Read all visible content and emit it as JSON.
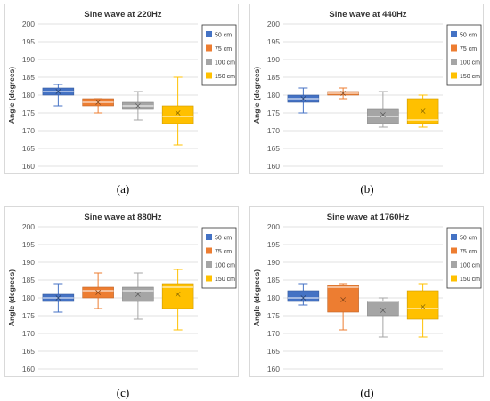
{
  "chart_data": [
    {
      "type": "box",
      "title": "Sine wave at 220Hz",
      "ylabel": "Angle (degrees)",
      "ylim": [
        160,
        200
      ],
      "yticks": [
        160,
        165,
        170,
        175,
        180,
        185,
        190,
        195,
        200
      ],
      "grid": true,
      "legend": "top-right",
      "series": [
        {
          "name": "50 cm",
          "color": "#4472C4",
          "min": 177,
          "q1": 180,
          "median": 181,
          "q3": 182,
          "max": 183,
          "mean": 181
        },
        {
          "name": "75 cm",
          "color": "#ED7D31",
          "min": 175,
          "q1": 177,
          "median": 178,
          "q3": 179,
          "max": 179,
          "mean": 178
        },
        {
          "name": "100 cm",
          "color": "#A5A5A5",
          "min": 173,
          "q1": 176,
          "median": 177,
          "q3": 178,
          "max": 181,
          "mean": 177
        },
        {
          "name": "150 cm",
          "color": "#FFC000",
          "min": 166,
          "q1": 172,
          "median": 174,
          "q3": 177,
          "max": 185,
          "mean": 175
        }
      ]
    },
    {
      "type": "box",
      "title": "Sine wave at 440Hz",
      "ylabel": "Angle (degrees)",
      "ylim": [
        160,
        200
      ],
      "yticks": [
        160,
        165,
        170,
        175,
        180,
        185,
        190,
        195,
        200
      ],
      "grid": true,
      "legend": "top-right",
      "series": [
        {
          "name": "50 cm",
          "color": "#4472C4",
          "min": 175,
          "q1": 178,
          "median": 179,
          "q3": 180,
          "max": 182,
          "mean": 179
        },
        {
          "name": "75 cm",
          "color": "#ED7D31",
          "min": 179,
          "q1": 180,
          "median": 180.5,
          "q3": 181,
          "max": 182,
          "mean": 180.5
        },
        {
          "name": "100 cm",
          "color": "#A5A5A5",
          "min": 171,
          "q1": 172,
          "median": 174,
          "q3": 176,
          "max": 181,
          "mean": 174.5
        },
        {
          "name": "150 cm",
          "color": "#FFC000",
          "min": 171,
          "q1": 172,
          "median": 173,
          "q3": 179,
          "max": 180,
          "mean": 175.5
        }
      ]
    },
    {
      "type": "box",
      "title": "Sine wave at 880Hz",
      "ylabel": "Angle (degrees)",
      "ylim": [
        160,
        200
      ],
      "yticks": [
        160,
        165,
        170,
        175,
        180,
        185,
        190,
        195,
        200
      ],
      "grid": true,
      "legend": "top-right",
      "series": [
        {
          "name": "50 cm",
          "color": "#4472C4",
          "min": 176,
          "q1": 179,
          "median": 180,
          "q3": 181,
          "max": 184,
          "mean": 180
        },
        {
          "name": "75 cm",
          "color": "#ED7D31",
          "min": 177,
          "q1": 180,
          "median": 182,
          "q3": 183,
          "max": 187,
          "mean": 181.5
        },
        {
          "name": "100 cm",
          "color": "#A5A5A5",
          "min": 174,
          "q1": 179,
          "median": 182,
          "q3": 183,
          "max": 187,
          "mean": 181
        },
        {
          "name": "150 cm",
          "color": "#FFC000",
          "min": 171,
          "q1": 177,
          "median": 183,
          "q3": 184,
          "max": 188,
          "mean": 181
        }
      ]
    },
    {
      "type": "box",
      "title": "Sine wave at 1760Hz",
      "ylabel": "Angle (degrees)",
      "ylim": [
        160,
        200
      ],
      "yticks": [
        160,
        165,
        170,
        175,
        180,
        185,
        190,
        195,
        200
      ],
      "grid": true,
      "legend": "top-right",
      "series": [
        {
          "name": "50 cm",
          "color": "#4472C4",
          "min": 178,
          "q1": 179,
          "median": 180,
          "q3": 182,
          "max": 184,
          "mean": 180
        },
        {
          "name": "75 cm",
          "color": "#ED7D31",
          "min": 171,
          "q1": 176,
          "median": 183,
          "q3": 183.5,
          "max": 184,
          "mean": 179.5
        },
        {
          "name": "100 cm",
          "color": "#A5A5A5",
          "min": 169,
          "q1": 175,
          "median": 179,
          "q3": 179,
          "max": 180,
          "mean": 176.5
        },
        {
          "name": "150 cm",
          "color": "#FFC000",
          "min": 169,
          "q1": 174,
          "median": 177,
          "q3": 182,
          "max": 184,
          "mean": 177.5
        }
      ]
    }
  ],
  "captions": [
    "(a)",
    "(b)",
    "(c)",
    "(d)"
  ]
}
